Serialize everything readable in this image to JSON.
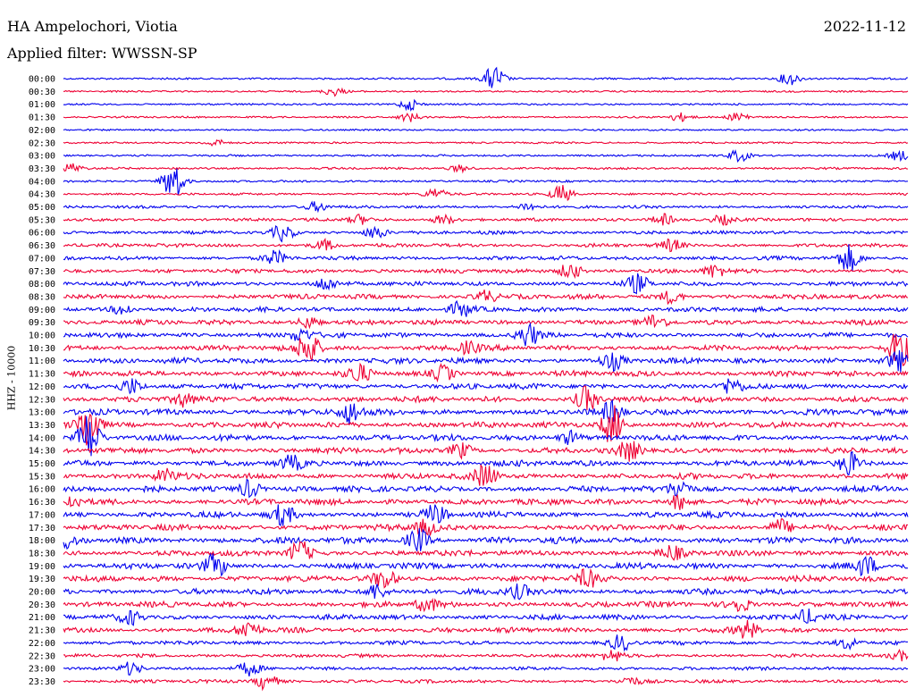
{
  "header": {
    "station": "HA Ampelochori, Viotia",
    "date": "2022-11-12",
    "filter": "Applied filter: WWSSN-SP"
  },
  "chart_data": {
    "type": "line",
    "title": "HA Ampelochori, Viotia",
    "ylabel": "HHZ - 10000",
    "colors": {
      "even": "#0000ee",
      "odd": "#ee0033",
      "label": "#000000"
    },
    "rows": [
      {
        "time": "00:00",
        "activity": 0.15,
        "events": [
          [
            0.51,
            1.6
          ],
          [
            0.86,
            0.8
          ]
        ]
      },
      {
        "time": "00:30",
        "activity": 0.12,
        "events": [
          [
            0.32,
            0.5
          ]
        ]
      },
      {
        "time": "01:00",
        "activity": 0.12,
        "events": [
          [
            0.41,
            0.7
          ]
        ]
      },
      {
        "time": "01:30",
        "activity": 0.12,
        "events": [
          [
            0.41,
            0.5
          ],
          [
            0.73,
            0.5
          ],
          [
            0.8,
            0.6
          ]
        ]
      },
      {
        "time": "02:00",
        "activity": 0.1,
        "events": []
      },
      {
        "time": "02:30",
        "activity": 0.12,
        "events": [
          [
            0.18,
            0.4
          ]
        ]
      },
      {
        "time": "03:00",
        "activity": 0.15,
        "events": [
          [
            0.8,
            0.7
          ],
          [
            0.99,
            0.6
          ]
        ]
      },
      {
        "time": "03:30",
        "activity": 0.18,
        "events": [
          [
            0.01,
            0.6
          ],
          [
            0.47,
            0.4
          ]
        ]
      },
      {
        "time": "04:00",
        "activity": 0.18,
        "events": [
          [
            0.13,
            2.4
          ]
        ]
      },
      {
        "time": "04:30",
        "activity": 0.2,
        "events": [
          [
            0.44,
            0.7
          ],
          [
            0.59,
            1.1
          ]
        ]
      },
      {
        "time": "05:00",
        "activity": 0.3,
        "events": [
          [
            0.3,
            0.6
          ],
          [
            0.55,
            0.5
          ]
        ]
      },
      {
        "time": "05:30",
        "activity": 0.35,
        "events": [
          [
            0.35,
            0.6
          ],
          [
            0.45,
            0.6
          ],
          [
            0.71,
            0.7
          ],
          [
            0.78,
            0.6
          ]
        ]
      },
      {
        "time": "06:00",
        "activity": 0.4,
        "events": [
          [
            0.26,
            1.0
          ],
          [
            0.37,
            0.8
          ]
        ]
      },
      {
        "time": "06:30",
        "activity": 0.45,
        "events": [
          [
            0.31,
            0.6
          ],
          [
            0.72,
            0.7
          ]
        ]
      },
      {
        "time": "07:00",
        "activity": 0.5,
        "events": [
          [
            0.93,
            1.6
          ],
          [
            0.25,
            0.8
          ]
        ]
      },
      {
        "time": "07:30",
        "activity": 0.55,
        "events": [
          [
            0.6,
            1.0
          ],
          [
            0.77,
            0.8
          ]
        ]
      },
      {
        "time": "08:00",
        "activity": 0.6,
        "events": [
          [
            0.68,
            1.1
          ],
          [
            0.31,
            0.8
          ]
        ]
      },
      {
        "time": "08:30",
        "activity": 0.65,
        "events": [
          [
            0.5,
            0.8
          ],
          [
            0.72,
            0.8
          ]
        ]
      },
      {
        "time": "09:00",
        "activity": 0.65,
        "events": [
          [
            0.47,
            0.9
          ],
          [
            0.07,
            0.7
          ]
        ]
      },
      {
        "time": "09:30",
        "activity": 0.7,
        "events": [
          [
            0.29,
            0.7
          ],
          [
            0.7,
            0.8
          ]
        ]
      },
      {
        "time": "10:00",
        "activity": 0.7,
        "events": [
          [
            0.55,
            1.4
          ],
          [
            0.28,
            0.8
          ]
        ]
      },
      {
        "time": "10:30",
        "activity": 0.75,
        "events": [
          [
            0.29,
            2.2
          ],
          [
            0.99,
            2.4
          ],
          [
            0.48,
            0.8
          ]
        ]
      },
      {
        "time": "11:00",
        "activity": 0.8,
        "events": [
          [
            0.65,
            1.0
          ],
          [
            0.99,
            1.2
          ]
        ]
      },
      {
        "time": "11:30",
        "activity": 0.8,
        "events": [
          [
            0.35,
            1.1
          ],
          [
            0.45,
            1.0
          ]
        ]
      },
      {
        "time": "12:00",
        "activity": 0.8,
        "events": [
          [
            0.08,
            1.0
          ],
          [
            0.79,
            0.9
          ]
        ]
      },
      {
        "time": "12:30",
        "activity": 0.85,
        "events": [
          [
            0.62,
            1.6
          ],
          [
            0.14,
            0.8
          ]
        ]
      },
      {
        "time": "13:00",
        "activity": 0.85,
        "events": [
          [
            0.34,
            1.4
          ],
          [
            0.65,
            1.2
          ]
        ]
      },
      {
        "time": "13:30",
        "activity": 0.85,
        "events": [
          [
            0.03,
            3.2
          ],
          [
            0.65,
            2.4
          ]
        ]
      },
      {
        "time": "14:00",
        "activity": 0.85,
        "events": [
          [
            0.03,
            3.0
          ],
          [
            0.6,
            0.8
          ]
        ]
      },
      {
        "time": "14:30",
        "activity": 0.85,
        "events": [
          [
            0.47,
            0.9
          ],
          [
            0.67,
            1.1
          ]
        ]
      },
      {
        "time": "15:00",
        "activity": 0.85,
        "events": [
          [
            0.93,
            1.4
          ],
          [
            0.27,
            0.8
          ]
        ]
      },
      {
        "time": "15:30",
        "activity": 0.85,
        "events": [
          [
            0.5,
            1.4
          ],
          [
            0.12,
            0.8
          ]
        ]
      },
      {
        "time": "16:00",
        "activity": 0.85,
        "events": [
          [
            0.22,
            1.1
          ],
          [
            0.73,
            1.2
          ]
        ]
      },
      {
        "time": "16:30",
        "activity": 0.85,
        "events": [
          [
            0.01,
            0.8
          ],
          [
            0.73,
            0.9
          ]
        ]
      },
      {
        "time": "17:00",
        "activity": 0.85,
        "events": [
          [
            0.26,
            1.2
          ],
          [
            0.44,
            1.1
          ]
        ]
      },
      {
        "time": "17:30",
        "activity": 0.85,
        "events": [
          [
            0.43,
            1.0
          ],
          [
            0.85,
            1.0
          ]
        ]
      },
      {
        "time": "18:00",
        "activity": 0.95,
        "events": [
          [
            0.0,
            1.0
          ],
          [
            0.42,
            1.4
          ]
        ]
      },
      {
        "time": "18:30",
        "activity": 0.85,
        "events": [
          [
            0.28,
            1.4
          ],
          [
            0.72,
            0.8
          ]
        ]
      },
      {
        "time": "19:00",
        "activity": 0.85,
        "events": [
          [
            0.18,
            1.4
          ],
          [
            0.95,
            1.2
          ]
        ]
      },
      {
        "time": "19:30",
        "activity": 0.85,
        "events": [
          [
            0.38,
            1.1
          ],
          [
            0.62,
            1.0
          ]
        ]
      },
      {
        "time": "20:00",
        "activity": 0.8,
        "events": [
          [
            0.37,
            1.0
          ],
          [
            0.54,
            0.9
          ]
        ]
      },
      {
        "time": "20:30",
        "activity": 0.8,
        "events": [
          [
            0.43,
            0.8
          ],
          [
            0.8,
            0.9
          ]
        ]
      },
      {
        "time": "21:00",
        "activity": 0.7,
        "events": [
          [
            0.08,
            0.8
          ],
          [
            0.88,
            0.9
          ]
        ]
      },
      {
        "time": "21:30",
        "activity": 0.7,
        "events": [
          [
            0.22,
            1.2
          ],
          [
            0.81,
            1.1
          ]
        ]
      },
      {
        "time": "22:00",
        "activity": 0.5,
        "events": [
          [
            0.66,
            0.9
          ],
          [
            0.93,
            0.7
          ]
        ]
      },
      {
        "time": "22:30",
        "activity": 0.4,
        "events": [
          [
            0.65,
            0.8
          ],
          [
            0.99,
            0.6
          ]
        ]
      },
      {
        "time": "23:00",
        "activity": 0.4,
        "events": [
          [
            0.08,
            0.8
          ],
          [
            0.22,
            0.8
          ]
        ]
      },
      {
        "time": "23:30",
        "activity": 0.4,
        "events": [
          [
            0.24,
            1.0
          ],
          [
            0.67,
            0.5
          ]
        ]
      }
    ]
  }
}
